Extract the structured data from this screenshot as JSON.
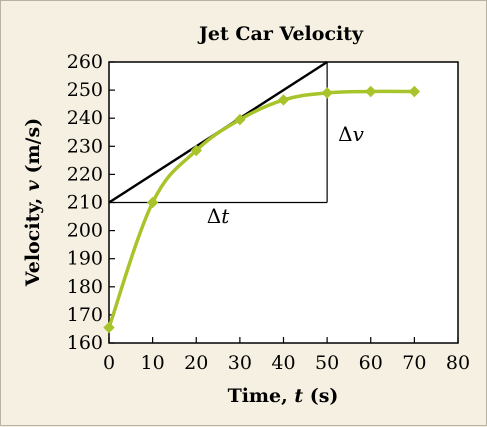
{
  "chart_data": {
    "type": "line",
    "title": "Jet Car Velocity",
    "xlabel": {
      "prefix": "Time, ",
      "var": "t",
      "suffix": " (s)"
    },
    "ylabel": {
      "prefix": "Velocity, ",
      "var": "v",
      "suffix": " (m/s)"
    },
    "xlim": [
      0,
      80
    ],
    "ylim": [
      160,
      260
    ],
    "xticks": [
      0,
      10,
      20,
      30,
      40,
      50,
      60,
      70,
      80
    ],
    "yticks": [
      160,
      170,
      180,
      190,
      200,
      210,
      220,
      230,
      240,
      250,
      260
    ],
    "grid": false,
    "series": [
      {
        "x": [
          0,
          10,
          20,
          30,
          40,
          50,
          60,
          70
        ],
        "y": [
          165.5,
          210,
          228.5,
          239.5,
          246.5,
          249,
          249.5,
          249.5
        ],
        "color": "#a8c42b",
        "marker": "diamond"
      }
    ],
    "tangent": {
      "from": [
        0,
        210
      ],
      "to": [
        50,
        260
      ],
      "color": "#000000"
    },
    "annotations": {
      "delta_t": "Δt",
      "delta_v": "Δv"
    }
  }
}
